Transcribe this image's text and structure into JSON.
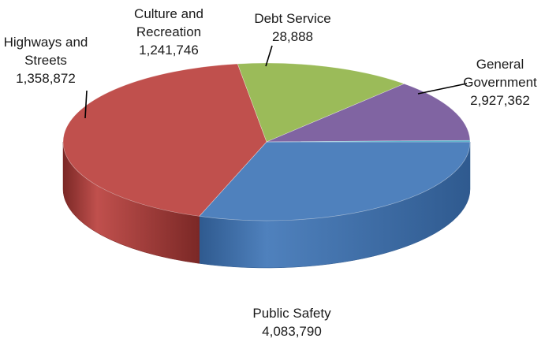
{
  "chart_data": {
    "type": "pie",
    "style": "3d",
    "title": "",
    "categories": [
      "General Government",
      "Public Safety",
      "Highways and Streets",
      "Culture and Recreation",
      "Debt Service"
    ],
    "values": [
      2927362,
      4083790,
      1358872,
      1241746,
      28888
    ],
    "value_labels": [
      "2,927,362",
      "4,083,790",
      "1,358,872",
      "1,241,746",
      "28,888"
    ],
    "label_lines": [
      [
        "General",
        "Government"
      ],
      [
        "Public Safety"
      ],
      [
        "Highways and",
        "Streets"
      ],
      [
        "Culture and",
        "Recreation"
      ],
      [
        "Debt Service"
      ]
    ],
    "colors": [
      "#4f81bd",
      "#c0504d",
      "#9bbb59",
      "#8064a2",
      "#4bacc6"
    ],
    "side_colors": [
      "#2f5a8f",
      "#7b2826",
      "#6a8a32",
      "#54407a",
      "#2a8aa4"
    ],
    "legend": "none",
    "start_angle_deg": 0,
    "direction": "clockwise"
  }
}
